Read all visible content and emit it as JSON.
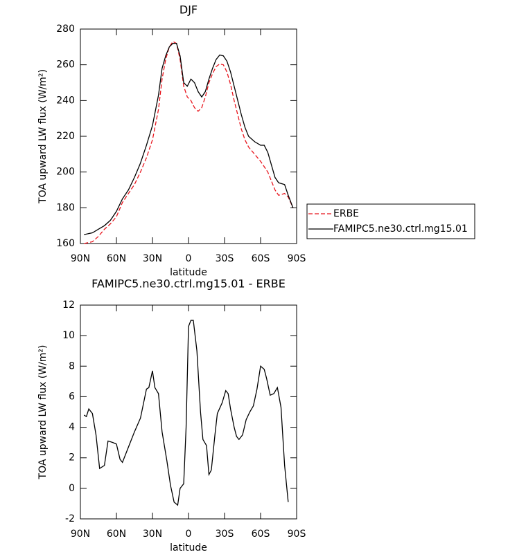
{
  "chart_data": [
    {
      "type": "line",
      "title": "DJF",
      "xlabel": "latitude",
      "ylabel": "TOA upward LW flux (W/m²)",
      "x": [
        87,
        80,
        75,
        70,
        65,
        60,
        55,
        50,
        45,
        40,
        35,
        30,
        25,
        22,
        19,
        16,
        13,
        10,
        7,
        4,
        1,
        -2,
        -5,
        -8,
        -11,
        -14,
        -17,
        -20,
        -23,
        -26,
        -29,
        -32,
        -35,
        -38,
        -41,
        -44,
        -47,
        -50,
        -55,
        -60,
        -63,
        -66,
        -69,
        -72,
        -75,
        -80,
        -83,
        -87
      ],
      "series": [
        {
          "name": "ERBE",
          "color": "#e8141c",
          "dash": true,
          "values": [
            160,
            161,
            164,
            168,
            171,
            175,
            183,
            188,
            193,
            200,
            208,
            218,
            235,
            252,
            263,
            270,
            273,
            272,
            263,
            248,
            242,
            240,
            236,
            234,
            236,
            242,
            250,
            255,
            259,
            260.5,
            260,
            256,
            249,
            240,
            232,
            224,
            218,
            214,
            210,
            206,
            203,
            200,
            195,
            190,
            187,
            188,
            186,
            180
          ]
        },
        {
          "name": "FAMIPC5.ne30.ctrl.mg15.01",
          "color": "#000000",
          "dash": false,
          "values": [
            165,
            166,
            168,
            170,
            173,
            178,
            185,
            190,
            197,
            205,
            215,
            226,
            243,
            258,
            265,
            270,
            272,
            272,
            265,
            250,
            248,
            252,
            250,
            245,
            242,
            245,
            252,
            258,
            263,
            265.5,
            265,
            262,
            256,
            248,
            240,
            232,
            225,
            220,
            217,
            215,
            215,
            211,
            204,
            197,
            194,
            193,
            187,
            180
          ]
        }
      ],
      "xlim": [
        90,
        -90
      ],
      "xticks": [
        {
          "value": 90,
          "label": "90N"
        },
        {
          "value": 60,
          "label": "60N"
        },
        {
          "value": 30,
          "label": "30N"
        },
        0,
        {
          "value": -30,
          "label": "30S"
        },
        {
          "value": -60,
          "label": "60S"
        },
        {
          "value": -90,
          "label": "90S"
        }
      ],
      "ylim": [
        160,
        280
      ],
      "yticks": [
        160,
        180,
        200,
        220,
        240,
        260,
        280
      ],
      "legend": "outside right"
    },
    {
      "type": "line",
      "title": "FAMIPC5.ne30.ctrl.mg15.01 - ERBE",
      "xlabel": "latitude",
      "ylabel": "TOA upward LW flux (W/m²)",
      "x": [
        87,
        85,
        83,
        80,
        77,
        74,
        70,
        67,
        63,
        60,
        57,
        55,
        50,
        45,
        40,
        35,
        33,
        30,
        28,
        25,
        22,
        18,
        15,
        12,
        9,
        7,
        4,
        2,
        0,
        -2,
        -4,
        -7,
        -10,
        -12,
        -15,
        -17,
        -19,
        -22,
        -24,
        -28,
        -31,
        -33,
        -35,
        -38,
        -40,
        -42,
        -45,
        -48,
        -51,
        -54,
        -57,
        -60,
        -63,
        -65,
        -68,
        -71,
        -74,
        -77,
        -80,
        -83
      ],
      "values": [
        4.8,
        4.7,
        5.2,
        4.9,
        3.5,
        1.3,
        1.5,
        3.1,
        3.0,
        2.9,
        1.9,
        1.7,
        2.7,
        3.7,
        4.6,
        6.5,
        6.6,
        7.7,
        6.6,
        6.2,
        3.7,
        1.8,
        0.2,
        -0.9,
        -1.1,
        0,
        0.3,
        4,
        10.6,
        11,
        11,
        9,
        5,
        3.2,
        2.8,
        0.9,
        1.2,
        3.5,
        4.9,
        5.6,
        6.4,
        6.2,
        5.2,
        4,
        3.4,
        3.2,
        3.5,
        4.5,
        5,
        5.4,
        6.5,
        8,
        7.8,
        7.2,
        6.1,
        6.2,
        6.6,
        5.3,
        1.5,
        -0.9
      ],
      "color": "#000000",
      "xlim": [
        90,
        -90
      ],
      "xticks": [
        {
          "value": 90,
          "label": "90N"
        },
        {
          "value": 60,
          "label": "60N"
        },
        {
          "value": 30,
          "label": "30N"
        },
        0,
        {
          "value": -30,
          "label": "30S"
        },
        {
          "value": -60,
          "label": "60S"
        },
        {
          "value": -90,
          "label": "90S"
        }
      ],
      "ylim": [
        -2,
        12
      ],
      "yticks": [
        -2,
        0,
        2,
        4,
        6,
        8,
        10,
        12
      ]
    }
  ]
}
